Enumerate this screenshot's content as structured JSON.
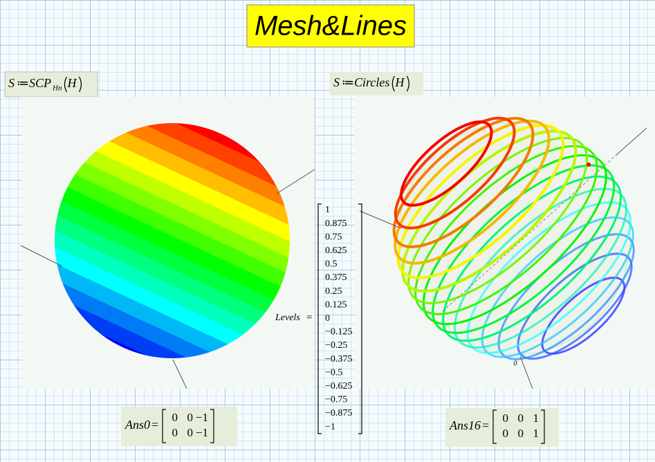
{
  "title": "Mesh&Lines",
  "left": {
    "definition": {
      "lhs": "S",
      "op": "≔",
      "func": "SCP",
      "sub": "Hn",
      "arg": "H"
    },
    "result": {
      "name": "Ans0",
      "op": "=",
      "matrix": [
        [
          "0",
          "0",
          "−1"
        ],
        [
          "0",
          "0",
          "−1"
        ]
      ]
    }
  },
  "right": {
    "definition": {
      "lhs": "S",
      "op": "≔",
      "func": "Circles",
      "arg": "H"
    },
    "axis_label": "0",
    "result": {
      "name": "Ans16",
      "op": "=",
      "matrix": [
        [
          "0",
          "0",
          "1"
        ],
        [
          "0",
          "0",
          "1"
        ]
      ]
    }
  },
  "levels": {
    "name": "Levels",
    "op": "=",
    "values": [
      "1",
      "0.875",
      "0.75",
      "0.625",
      "0.5",
      "0.375",
      "0.25",
      "0.125",
      "0",
      "−0.125",
      "−0.25",
      "−0.375",
      "−0.5",
      "−0.625",
      "−0.75",
      "−0.875",
      "−1"
    ]
  }
}
